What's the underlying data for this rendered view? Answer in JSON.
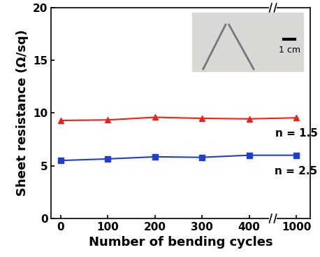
{
  "chart_data": {
    "type": "line",
    "x_label": "Number of bending cycles",
    "y_label": "Sheet resistance (Ω/sq)",
    "categories": [
      "0",
      "100",
      "200",
      "300",
      "400",
      "1000"
    ],
    "series": [
      {
        "name": "n = 1.5",
        "color": "#e8231c",
        "marker": "triangle",
        "line_style": "solid",
        "values": [
          9.3,
          9.35,
          9.6,
          9.5,
          9.45,
          9.55
        ]
      },
      {
        "name": "n = 2.5",
        "color": "#1f3fd0",
        "marker": "square",
        "line_style": "solid",
        "values": [
          5.5,
          5.65,
          5.85,
          5.8,
          6.0,
          6.0
        ]
      }
    ],
    "ylim": [
      0,
      20
    ],
    "yticks": [
      0,
      5,
      10,
      15,
      20
    ],
    "annotations": [
      "1 cm"
    ]
  }
}
